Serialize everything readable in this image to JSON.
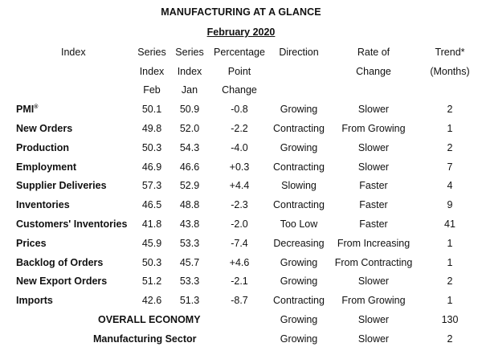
{
  "title": "MANUFACTURING AT A GLANCE",
  "subtitle": "February 2020",
  "header": {
    "row1": [
      "Index",
      "Series",
      "Series",
      "Percentage",
      "Direction",
      "Rate of",
      "Trend*"
    ],
    "row2": [
      "",
      "Index",
      "Index",
      "Point",
      "",
      "Change",
      "(Months)"
    ],
    "row3": [
      "",
      "Feb",
      "Jan",
      "Change",
      "",
      "",
      ""
    ]
  },
  "rows": [
    {
      "index": "PMI",
      "reg": "®",
      "feb": "50.1",
      "jan": "50.9",
      "change": "-0.8",
      "direction": "Growing",
      "rate": "Slower",
      "trend": "2"
    },
    {
      "index": "New Orders",
      "feb": "49.8",
      "jan": "52.0",
      "change": "-2.2",
      "direction": "Contracting",
      "rate": "From Growing",
      "trend": "1"
    },
    {
      "index": "Production",
      "feb": "50.3",
      "jan": "54.3",
      "change": "-4.0",
      "direction": "Growing",
      "rate": "Slower",
      "trend": "2"
    },
    {
      "index": "Employment",
      "feb": "46.9",
      "jan": "46.6",
      "change": "+0.3",
      "direction": "Contracting",
      "rate": "Slower",
      "trend": "7"
    },
    {
      "index": "Supplier Deliveries",
      "feb": "57.3",
      "jan": "52.9",
      "change": "+4.4",
      "direction": "Slowing",
      "rate": "Faster",
      "trend": "4"
    },
    {
      "index": "Inventories",
      "feb": "46.5",
      "jan": "48.8",
      "change": "-2.3",
      "direction": "Contracting",
      "rate": "Faster",
      "trend": "9"
    },
    {
      "index": "Customers' Inventories",
      "feb": "41.8",
      "jan": "43.8",
      "change": "-2.0",
      "direction": "Too Low",
      "rate": "Faster",
      "trend": "41"
    },
    {
      "index": "Prices",
      "feb": "45.9",
      "jan": "53.3",
      "change": "-7.4",
      "direction": "Decreasing",
      "rate": "From Increasing",
      "trend": "1"
    },
    {
      "index": "Backlog of Orders",
      "feb": "50.3",
      "jan": "45.7",
      "change": "+4.6",
      "direction": "Growing",
      "rate": "From Contracting",
      "trend": "1"
    },
    {
      "index": "New Export Orders",
      "feb": "51.2",
      "jan": "53.3",
      "change": "-2.1",
      "direction": "Growing",
      "rate": "Slower",
      "trend": "2"
    },
    {
      "index": "Imports",
      "feb": "42.6",
      "jan": "51.3",
      "change": "-8.7",
      "direction": "Contracting",
      "rate": "From Growing",
      "trend": "1"
    }
  ],
  "summary": [
    {
      "label": "OVERALL ECONOMY",
      "direction": "Growing",
      "rate": "Slower",
      "trend": "130"
    },
    {
      "label": "Manufacturing Sector",
      "direction": "Growing",
      "rate": "Slower",
      "trend": "2"
    }
  ]
}
